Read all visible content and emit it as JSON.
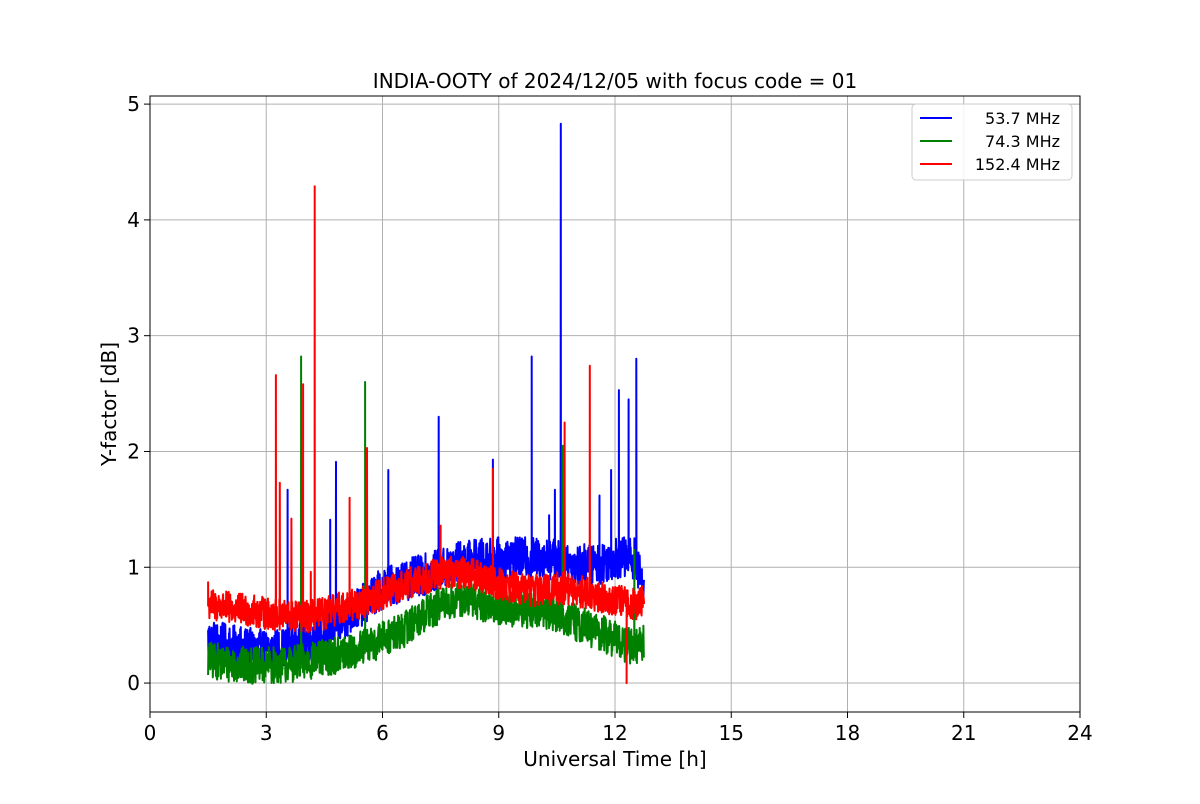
{
  "chart_data": {
    "type": "line",
    "title": "INDIA-OOTY of 2024/12/05 with focus code = 01",
    "xlabel": "Universal Time [h]",
    "ylabel": "Y-factor [dB]",
    "xlim": [
      0,
      24
    ],
    "ylim": [
      -0.25,
      5.07
    ],
    "xticks": [
      0,
      3,
      6,
      9,
      12,
      15,
      18,
      21,
      24
    ],
    "yticks": [
      0,
      1,
      2,
      3,
      4,
      5
    ],
    "grid": true,
    "legend_position": "top-right",
    "series": [
      {
        "name": "53.7 MHz",
        "color": "#0000ff",
        "x": [
          1.5,
          2.0,
          2.5,
          3.0,
          3.5,
          4.0,
          4.5,
          5.0,
          5.5,
          6.0,
          6.5,
          7.0,
          7.5,
          8.0,
          8.5,
          9.0,
          9.5,
          10.0,
          10.5,
          11.0,
          11.5,
          12.0,
          12.5,
          12.75
        ],
        "values": [
          0.38,
          0.33,
          0.3,
          0.28,
          0.3,
          0.36,
          0.42,
          0.55,
          0.68,
          0.82,
          0.88,
          0.93,
          0.98,
          1.05,
          1.07,
          1.08,
          1.08,
          1.08,
          1.07,
          1.03,
          1.02,
          1.08,
          1.08,
          0.8
        ],
        "spikes": [
          [
            3.55,
            1.67
          ],
          [
            4.65,
            1.41
          ],
          [
            4.8,
            1.91
          ],
          [
            6.15,
            1.84
          ],
          [
            7.45,
            2.3
          ],
          [
            8.85,
            1.93
          ],
          [
            9.85,
            2.82
          ],
          [
            10.3,
            1.45
          ],
          [
            10.45,
            1.67
          ],
          [
            10.6,
            4.83
          ],
          [
            11.6,
            1.62
          ],
          [
            11.9,
            1.84
          ],
          [
            12.1,
            2.53
          ],
          [
            12.35,
            2.45
          ],
          [
            12.55,
            2.8
          ]
        ]
      },
      {
        "name": "74.3 MHz",
        "color": "#008000",
        "x": [
          1.5,
          2.0,
          2.5,
          3.0,
          3.5,
          4.0,
          4.5,
          5.0,
          5.5,
          6.0,
          6.5,
          7.0,
          7.5,
          8.0,
          8.5,
          9.0,
          9.5,
          10.0,
          10.5,
          11.0,
          11.5,
          12.0,
          12.5,
          12.75
        ],
        "values": [
          0.2,
          0.17,
          0.15,
          0.15,
          0.16,
          0.18,
          0.22,
          0.25,
          0.3,
          0.38,
          0.45,
          0.58,
          0.67,
          0.72,
          0.7,
          0.65,
          0.62,
          0.64,
          0.6,
          0.52,
          0.45,
          0.38,
          0.3,
          0.35
        ],
        "spikes": [
          [
            3.9,
            2.82
          ],
          [
            5.55,
            2.6
          ],
          [
            10.65,
            2.05
          ],
          [
            12.5,
            1.15
          ]
        ]
      },
      {
        "name": "152.4 MHz",
        "color": "#ff0000",
        "x": [
          1.5,
          2.0,
          2.5,
          3.0,
          3.5,
          4.0,
          4.5,
          5.0,
          5.5,
          6.0,
          6.5,
          7.0,
          7.5,
          8.0,
          8.5,
          9.0,
          9.5,
          10.0,
          10.5,
          11.0,
          11.5,
          12.0,
          12.5,
          12.75
        ],
        "values": [
          0.68,
          0.65,
          0.63,
          0.6,
          0.58,
          0.57,
          0.6,
          0.66,
          0.7,
          0.77,
          0.83,
          0.9,
          0.95,
          0.96,
          0.92,
          0.86,
          0.82,
          0.8,
          0.82,
          0.8,
          0.75,
          0.72,
          0.68,
          0.7
        ],
        "spikes": [
          [
            1.5,
            0.87
          ],
          [
            3.25,
            2.66
          ],
          [
            3.35,
            1.73
          ],
          [
            3.65,
            1.42
          ],
          [
            3.95,
            2.58
          ],
          [
            4.15,
            0.96
          ],
          [
            4.25,
            4.29
          ],
          [
            5.15,
            1.6
          ],
          [
            5.6,
            2.03
          ],
          [
            7.5,
            1.36
          ],
          [
            8.85,
            1.85
          ],
          [
            10.7,
            2.25
          ],
          [
            11.35,
            2.74
          ],
          [
            12.3,
            0.0
          ]
        ]
      }
    ]
  }
}
